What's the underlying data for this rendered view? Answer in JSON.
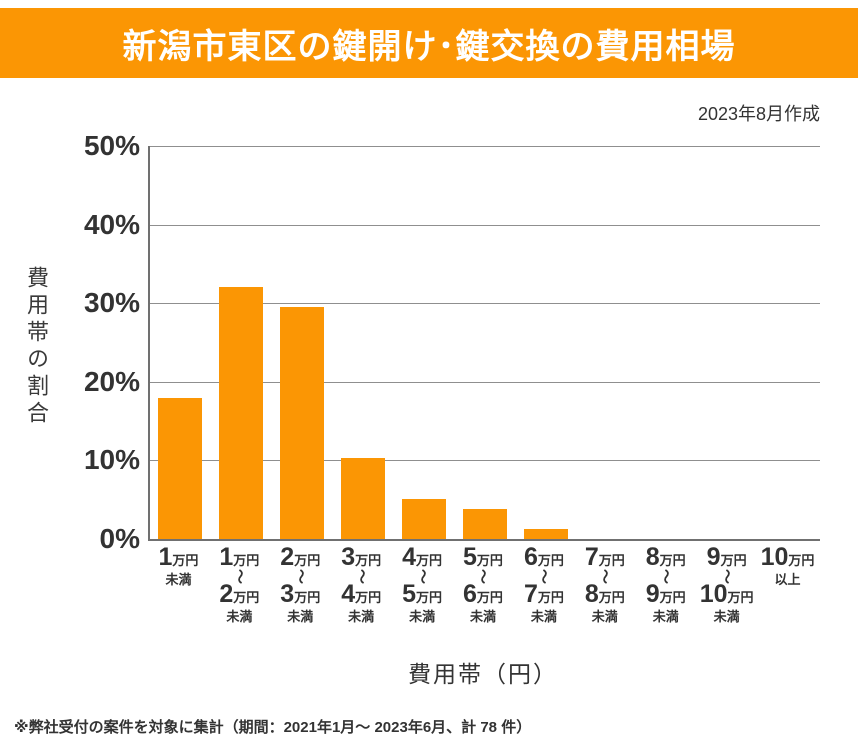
{
  "header": {
    "title": "新潟市東区の鍵開け･鍵交換の費用相場",
    "date_note": "2023年8月作成"
  },
  "colors": {
    "accent_orange": "#FB9604",
    "text_dark": "#333333",
    "grid_gray": "#8f8f8f",
    "axis_gray": "#707070"
  },
  "chart_data": {
    "type": "bar",
    "title": "新潟市東区の鍵開け･鍵交換の費用相場",
    "xlabel": "費用帯（円）",
    "ylabel": "費用帯の割合",
    "ylim": [
      0,
      50
    ],
    "grid": "horizontal",
    "legend": "none",
    "bar_color": "#FB9604",
    "ytick_labels": [
      "50%",
      "40%",
      "30%",
      "20%",
      "10%",
      "0%"
    ],
    "ytick_values": [
      50,
      40,
      30,
      20,
      10,
      0
    ],
    "categories": [
      "1万円未満",
      "1万円～2万円未満",
      "2万円～3万円未満",
      "3万円～4万円未満",
      "4万円～5万円未満",
      "5万円～6万円未満",
      "6万円～7万円未満",
      "7万円～8万円未満",
      "8万円～9万円未満",
      "9万円～10万円未満",
      "10万円以上"
    ],
    "values": [
      17.9,
      32.1,
      29.5,
      10.3,
      5.1,
      3.8,
      1.3,
      0,
      0,
      0,
      0
    ],
    "categories_display": [
      {
        "n1": "1",
        "u1": "万円",
        "tilde": false,
        "n2": "",
        "u2": "",
        "note": "未満"
      },
      {
        "n1": "1",
        "u1": "万円",
        "tilde": true,
        "n2": "2",
        "u2": "万円",
        "note": "未満"
      },
      {
        "n1": "2",
        "u1": "万円",
        "tilde": true,
        "n2": "3",
        "u2": "万円",
        "note": "未満"
      },
      {
        "n1": "3",
        "u1": "万円",
        "tilde": true,
        "n2": "4",
        "u2": "万円",
        "note": "未満"
      },
      {
        "n1": "4",
        "u1": "万円",
        "tilde": true,
        "n2": "5",
        "u2": "万円",
        "note": "未満"
      },
      {
        "n1": "5",
        "u1": "万円",
        "tilde": true,
        "n2": "6",
        "u2": "万円",
        "note": "未満"
      },
      {
        "n1": "6",
        "u1": "万円",
        "tilde": true,
        "n2": "7",
        "u2": "万円",
        "note": "未満"
      },
      {
        "n1": "7",
        "u1": "万円",
        "tilde": true,
        "n2": "8",
        "u2": "万円",
        "note": "未満"
      },
      {
        "n1": "8",
        "u1": "万円",
        "tilde": true,
        "n2": "9",
        "u2": "万円",
        "note": "未満"
      },
      {
        "n1": "9",
        "u1": "万円",
        "tilde": true,
        "n2": "10",
        "u2": "万円",
        "note": "未満"
      },
      {
        "n1": "10",
        "u1": "万円",
        "tilde": false,
        "n2": "",
        "u2": "",
        "note": "以上"
      }
    ],
    "tilde_glyph": "～"
  },
  "footer": {
    "source_note": "※弊社受付の案件を対象に集計（期間：2021年1月～ 2023年6月、計 78 件）"
  }
}
